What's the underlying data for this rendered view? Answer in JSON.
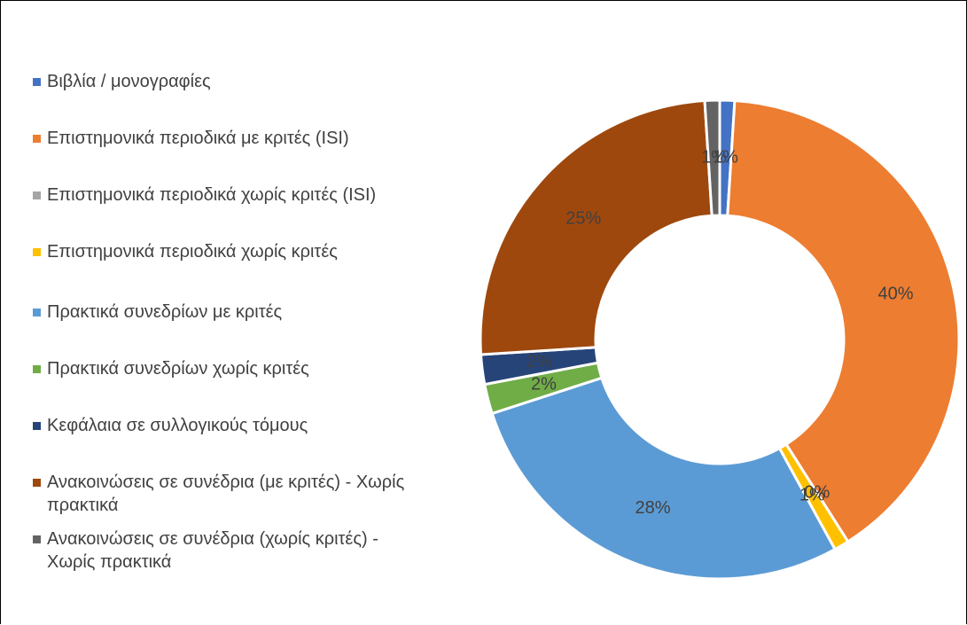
{
  "chart_data": {
    "type": "donut",
    "categories": [
      "Βιβλία / μονογραφίες",
      "Επιστημονικά περιοδικά με κριτές (ISI)",
      "Επιστημονικά περιοδικά χωρίς κριτές (ISI)",
      "Επιστημονικά περιοδικά χωρίς κριτές",
      "Πρακτικά συνεδρίων με κριτές",
      "Πρακτικά συνεδρίων χωρίς κριτές",
      "Κεφάλαια σε συλλογικούς τόμους",
      "Ανακοινώσεις σε συνέδρια (με κριτές) - Χωρίς πρακτικά",
      "Ανακοινώσεις σε συνέδρια (χωρίς κριτές) - Χωρίς πρακτικά"
    ],
    "values": [
      1,
      40,
      0,
      1,
      28,
      2,
      2,
      25,
      1
    ],
    "value_labels": [
      "1%",
      "40%",
      "0%",
      "1%",
      "28%",
      "2%",
      "2%",
      "25%",
      "1%"
    ],
    "colors": [
      "#4472c4",
      "#ed7d31",
      "#a5a5a5",
      "#ffc000",
      "#5b9bd5",
      "#70ad47",
      "#264478",
      "#9e480e",
      "#636363"
    ],
    "legend": "left"
  }
}
